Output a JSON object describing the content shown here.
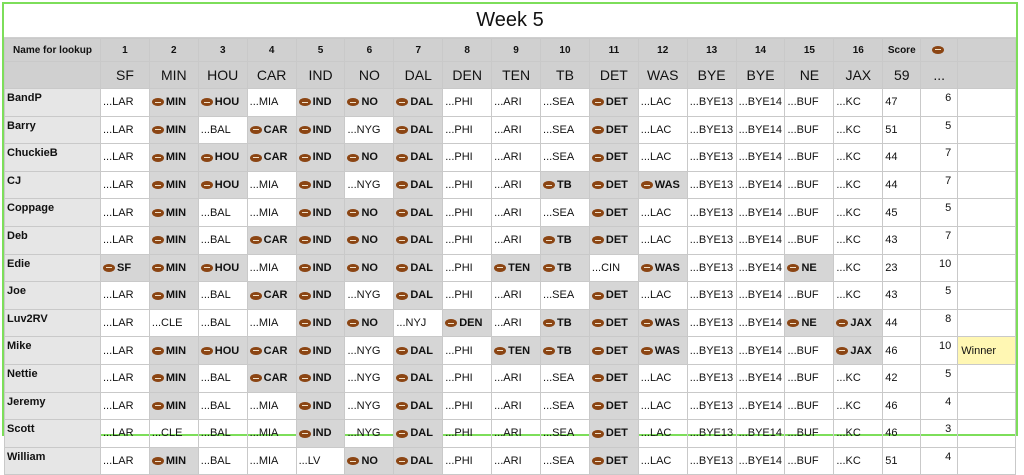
{
  "title": "Week 5",
  "header": {
    "name_label": "Name for lookup",
    "weeks": [
      "1",
      "2",
      "3",
      "4",
      "5",
      "6",
      "7",
      "8",
      "9",
      "10",
      "11",
      "12",
      "13",
      "14",
      "15",
      "16"
    ],
    "score_label": "Score",
    "points_icon": "football-icon",
    "results": [
      "SF",
      "MIN",
      "HOU",
      "CAR",
      "IND",
      "NO",
      "DAL",
      "DEN",
      "TEN",
      "TB",
      "DET",
      "WAS",
      "BYE",
      "BYE",
      "NE",
      "JAX"
    ],
    "score_total": "59",
    "points_more": "..."
  },
  "rows": [
    {
      "name": "BandP",
      "cells": [
        {
          "t": "...LAR",
          "p": false
        },
        {
          "t": "MIN",
          "p": true
        },
        {
          "t": "HOU",
          "p": true
        },
        {
          "t": "...MIA",
          "p": false
        },
        {
          "t": "IND",
          "p": true
        },
        {
          "t": "NO",
          "p": true
        },
        {
          "t": "DAL",
          "p": true
        },
        {
          "t": "...PHI",
          "p": false
        },
        {
          "t": "...ARI",
          "p": false
        },
        {
          "t": "...SEA",
          "p": false
        },
        {
          "t": "DET",
          "p": true
        },
        {
          "t": "...LAC",
          "p": false
        },
        {
          "t": "...BYE13",
          "p": false
        },
        {
          "t": "...BYE14",
          "p": false
        },
        {
          "t": "...BUF",
          "p": false
        },
        {
          "t": "...KC",
          "p": false
        }
      ],
      "score": "47",
      "points": "6",
      "note": ""
    },
    {
      "name": "Barry",
      "cells": [
        {
          "t": "...LAR",
          "p": false
        },
        {
          "t": "MIN",
          "p": true
        },
        {
          "t": "...BAL",
          "p": false
        },
        {
          "t": "CAR",
          "p": true
        },
        {
          "t": "IND",
          "p": true
        },
        {
          "t": "...NYG",
          "p": false
        },
        {
          "t": "DAL",
          "p": true
        },
        {
          "t": "...PHI",
          "p": false
        },
        {
          "t": "...ARI",
          "p": false
        },
        {
          "t": "...SEA",
          "p": false
        },
        {
          "t": "DET",
          "p": true
        },
        {
          "t": "...LAC",
          "p": false
        },
        {
          "t": "...BYE13",
          "p": false
        },
        {
          "t": "...BYE14",
          "p": false
        },
        {
          "t": "...BUF",
          "p": false
        },
        {
          "t": "...KC",
          "p": false
        }
      ],
      "score": "51",
      "points": "5",
      "note": ""
    },
    {
      "name": "ChuckieB",
      "cells": [
        {
          "t": "...LAR",
          "p": false
        },
        {
          "t": "MIN",
          "p": true
        },
        {
          "t": "HOU",
          "p": true
        },
        {
          "t": "CAR",
          "p": true
        },
        {
          "t": "IND",
          "p": true
        },
        {
          "t": "NO",
          "p": true
        },
        {
          "t": "DAL",
          "p": true
        },
        {
          "t": "...PHI",
          "p": false
        },
        {
          "t": "...ARI",
          "p": false
        },
        {
          "t": "...SEA",
          "p": false
        },
        {
          "t": "DET",
          "p": true
        },
        {
          "t": "...LAC",
          "p": false
        },
        {
          "t": "...BYE13",
          "p": false
        },
        {
          "t": "...BYE14",
          "p": false
        },
        {
          "t": "...BUF",
          "p": false
        },
        {
          "t": "...KC",
          "p": false
        }
      ],
      "score": "44",
      "points": "7",
      "note": ""
    },
    {
      "name": "CJ",
      "cells": [
        {
          "t": "...LAR",
          "p": false
        },
        {
          "t": "MIN",
          "p": true
        },
        {
          "t": "HOU",
          "p": true
        },
        {
          "t": "...MIA",
          "p": false
        },
        {
          "t": "IND",
          "p": true
        },
        {
          "t": "...NYG",
          "p": false
        },
        {
          "t": "DAL",
          "p": true
        },
        {
          "t": "...PHI",
          "p": false
        },
        {
          "t": "...ARI",
          "p": false
        },
        {
          "t": "TB",
          "p": true
        },
        {
          "t": "DET",
          "p": true
        },
        {
          "t": "WAS",
          "p": true
        },
        {
          "t": "...BYE13",
          "p": false
        },
        {
          "t": "...BYE14",
          "p": false
        },
        {
          "t": "...BUF",
          "p": false
        },
        {
          "t": "...KC",
          "p": false
        }
      ],
      "score": "44",
      "points": "7",
      "note": ""
    },
    {
      "name": "Coppage",
      "cells": [
        {
          "t": "...LAR",
          "p": false
        },
        {
          "t": "MIN",
          "p": true
        },
        {
          "t": "...BAL",
          "p": false
        },
        {
          "t": "...MIA",
          "p": false
        },
        {
          "t": "IND",
          "p": true
        },
        {
          "t": "NO",
          "p": true
        },
        {
          "t": "DAL",
          "p": true
        },
        {
          "t": "...PHI",
          "p": false
        },
        {
          "t": "...ARI",
          "p": false
        },
        {
          "t": "...SEA",
          "p": false
        },
        {
          "t": "DET",
          "p": true
        },
        {
          "t": "...LAC",
          "p": false
        },
        {
          "t": "...BYE13",
          "p": false
        },
        {
          "t": "...BYE14",
          "p": false
        },
        {
          "t": "...BUF",
          "p": false
        },
        {
          "t": "...KC",
          "p": false
        }
      ],
      "score": "45",
      "points": "5",
      "note": ""
    },
    {
      "name": "Deb",
      "cells": [
        {
          "t": "...LAR",
          "p": false
        },
        {
          "t": "MIN",
          "p": true
        },
        {
          "t": "...BAL",
          "p": false
        },
        {
          "t": "CAR",
          "p": true
        },
        {
          "t": "IND",
          "p": true
        },
        {
          "t": "NO",
          "p": true
        },
        {
          "t": "DAL",
          "p": true
        },
        {
          "t": "...PHI",
          "p": false
        },
        {
          "t": "...ARI",
          "p": false
        },
        {
          "t": "TB",
          "p": true
        },
        {
          "t": "DET",
          "p": true
        },
        {
          "t": "...LAC",
          "p": false
        },
        {
          "t": "...BYE13",
          "p": false
        },
        {
          "t": "...BYE14",
          "p": false
        },
        {
          "t": "...BUF",
          "p": false
        },
        {
          "t": "...KC",
          "p": false
        }
      ],
      "score": "43",
      "points": "7",
      "note": ""
    },
    {
      "name": "Edie",
      "cells": [
        {
          "t": "SF",
          "p": true
        },
        {
          "t": "MIN",
          "p": true
        },
        {
          "t": "HOU",
          "p": true
        },
        {
          "t": "...MIA",
          "p": false
        },
        {
          "t": "IND",
          "p": true
        },
        {
          "t": "NO",
          "p": true
        },
        {
          "t": "DAL",
          "p": true
        },
        {
          "t": "...PHI",
          "p": false
        },
        {
          "t": "TEN",
          "p": true
        },
        {
          "t": "TB",
          "p": true
        },
        {
          "t": "...CIN",
          "p": false
        },
        {
          "t": "WAS",
          "p": true
        },
        {
          "t": "...BYE13",
          "p": false
        },
        {
          "t": "...BYE14",
          "p": false
        },
        {
          "t": "NE",
          "p": true
        },
        {
          "t": "...KC",
          "p": false
        }
      ],
      "score": "23",
      "points": "10",
      "note": ""
    },
    {
      "name": "Joe",
      "cells": [
        {
          "t": "...LAR",
          "p": false
        },
        {
          "t": "MIN",
          "p": true
        },
        {
          "t": "...BAL",
          "p": false
        },
        {
          "t": "CAR",
          "p": true
        },
        {
          "t": "IND",
          "p": true
        },
        {
          "t": "...NYG",
          "p": false
        },
        {
          "t": "DAL",
          "p": true
        },
        {
          "t": "...PHI",
          "p": false
        },
        {
          "t": "...ARI",
          "p": false
        },
        {
          "t": "...SEA",
          "p": false
        },
        {
          "t": "DET",
          "p": true
        },
        {
          "t": "...LAC",
          "p": false
        },
        {
          "t": "...BYE13",
          "p": false
        },
        {
          "t": "...BYE14",
          "p": false
        },
        {
          "t": "...BUF",
          "p": false
        },
        {
          "t": "...KC",
          "p": false
        }
      ],
      "score": "43",
      "points": "5",
      "note": ""
    },
    {
      "name": "Luv2RV",
      "cells": [
        {
          "t": "...LAR",
          "p": false
        },
        {
          "t": "...CLE",
          "p": false
        },
        {
          "t": "...BAL",
          "p": false
        },
        {
          "t": "...MIA",
          "p": false
        },
        {
          "t": "IND",
          "p": true
        },
        {
          "t": "NO",
          "p": true
        },
        {
          "t": "...NYJ",
          "p": false
        },
        {
          "t": "DEN",
          "p": true
        },
        {
          "t": "...ARI",
          "p": false
        },
        {
          "t": "TB",
          "p": true
        },
        {
          "t": "DET",
          "p": true
        },
        {
          "t": "WAS",
          "p": true
        },
        {
          "t": "...BYE13",
          "p": false
        },
        {
          "t": "...BYE14",
          "p": false
        },
        {
          "t": "NE",
          "p": true
        },
        {
          "t": "JAX",
          "p": true
        }
      ],
      "score": "44",
      "points": "8",
      "note": ""
    },
    {
      "name": "Mike",
      "cells": [
        {
          "t": "...LAR",
          "p": false
        },
        {
          "t": "MIN",
          "p": true
        },
        {
          "t": "HOU",
          "p": true
        },
        {
          "t": "CAR",
          "p": true
        },
        {
          "t": "IND",
          "p": true
        },
        {
          "t": "...NYG",
          "p": false
        },
        {
          "t": "DAL",
          "p": true
        },
        {
          "t": "...PHI",
          "p": false
        },
        {
          "t": "TEN",
          "p": true
        },
        {
          "t": "TB",
          "p": true
        },
        {
          "t": "DET",
          "p": true
        },
        {
          "t": "WAS",
          "p": true
        },
        {
          "t": "...BYE13",
          "p": false
        },
        {
          "t": "...BYE14",
          "p": false
        },
        {
          "t": "...BUF",
          "p": false
        },
        {
          "t": "JAX",
          "p": true
        }
      ],
      "score": "46",
      "points": "10",
      "note": "Winner"
    },
    {
      "name": "Nettie",
      "cells": [
        {
          "t": "...LAR",
          "p": false
        },
        {
          "t": "MIN",
          "p": true
        },
        {
          "t": "...BAL",
          "p": false
        },
        {
          "t": "CAR",
          "p": true
        },
        {
          "t": "IND",
          "p": true
        },
        {
          "t": "...NYG",
          "p": false
        },
        {
          "t": "DAL",
          "p": true
        },
        {
          "t": "...PHI",
          "p": false
        },
        {
          "t": "...ARI",
          "p": false
        },
        {
          "t": "...SEA",
          "p": false
        },
        {
          "t": "DET",
          "p": true
        },
        {
          "t": "...LAC",
          "p": false
        },
        {
          "t": "...BYE13",
          "p": false
        },
        {
          "t": "...BYE14",
          "p": false
        },
        {
          "t": "...BUF",
          "p": false
        },
        {
          "t": "...KC",
          "p": false
        }
      ],
      "score": "42",
      "points": "5",
      "note": ""
    },
    {
      "name": "Jeremy",
      "cells": [
        {
          "t": "...LAR",
          "p": false
        },
        {
          "t": "MIN",
          "p": true
        },
        {
          "t": "...BAL",
          "p": false
        },
        {
          "t": "...MIA",
          "p": false
        },
        {
          "t": "IND",
          "p": true
        },
        {
          "t": "...NYG",
          "p": false
        },
        {
          "t": "DAL",
          "p": true
        },
        {
          "t": "...PHI",
          "p": false
        },
        {
          "t": "...ARI",
          "p": false
        },
        {
          "t": "...SEA",
          "p": false
        },
        {
          "t": "DET",
          "p": true
        },
        {
          "t": "...LAC",
          "p": false
        },
        {
          "t": "...BYE13",
          "p": false
        },
        {
          "t": "...BYE14",
          "p": false
        },
        {
          "t": "...BUF",
          "p": false
        },
        {
          "t": "...KC",
          "p": false
        }
      ],
      "score": "46",
      "points": "4",
      "note": ""
    },
    {
      "name": "Scott",
      "cells": [
        {
          "t": "...LAR",
          "p": false
        },
        {
          "t": "...CLE",
          "p": false
        },
        {
          "t": "...BAL",
          "p": false
        },
        {
          "t": "...MIA",
          "p": false
        },
        {
          "t": "IND",
          "p": true
        },
        {
          "t": "...NYG",
          "p": false
        },
        {
          "t": "DAL",
          "p": true
        },
        {
          "t": "...PHI",
          "p": false
        },
        {
          "t": "...ARI",
          "p": false
        },
        {
          "t": "...SEA",
          "p": false
        },
        {
          "t": "DET",
          "p": true
        },
        {
          "t": "...LAC",
          "p": false
        },
        {
          "t": "...BYE13",
          "p": false
        },
        {
          "t": "...BYE14",
          "p": false
        },
        {
          "t": "...BUF",
          "p": false
        },
        {
          "t": "...KC",
          "p": false
        }
      ],
      "score": "46",
      "points": "3",
      "note": ""
    },
    {
      "name": "William",
      "cells": [
        {
          "t": "...LAR",
          "p": false
        },
        {
          "t": "MIN",
          "p": true
        },
        {
          "t": "...BAL",
          "p": false
        },
        {
          "t": "...MIA",
          "p": false
        },
        {
          "t": "...LV",
          "p": false
        },
        {
          "t": "NO",
          "p": true
        },
        {
          "t": "DAL",
          "p": true
        },
        {
          "t": "...PHI",
          "p": false
        },
        {
          "t": "...ARI",
          "p": false
        },
        {
          "t": "...SEA",
          "p": false
        },
        {
          "t": "DET",
          "p": true
        },
        {
          "t": "...LAC",
          "p": false
        },
        {
          "t": "...BYE13",
          "p": false
        },
        {
          "t": "...BYE14",
          "p": false
        },
        {
          "t": "...BUF",
          "p": false
        },
        {
          "t": "...KC",
          "p": false
        }
      ],
      "score": "51",
      "points": "4",
      "note": ""
    }
  ]
}
